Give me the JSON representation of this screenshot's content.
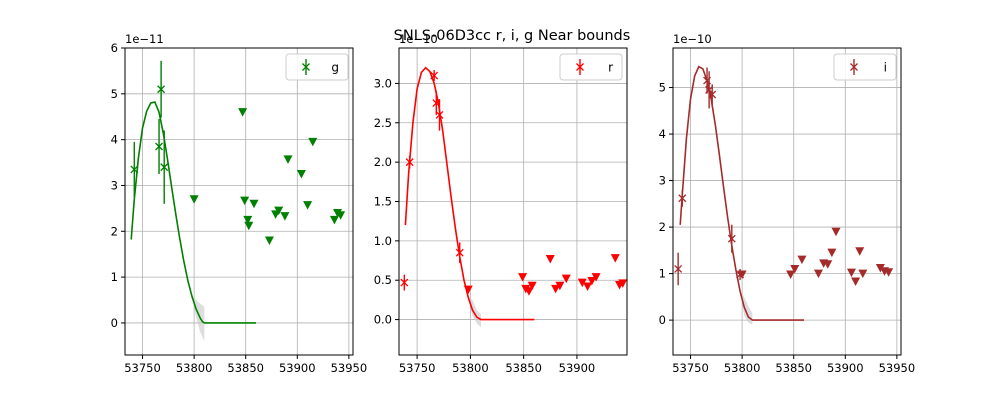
{
  "figure_title": "SNLS-06D3cc  r, i, g Near bounds",
  "chart_data": [
    {
      "type": "scatter",
      "band": "g",
      "legend_label": "g",
      "legend_location": "upper right",
      "color": "#008000",
      "offset_label": "1e−11",
      "xlim": [
        53733,
        53954
      ],
      "ylim": [
        -0.7,
        6.0
      ],
      "xticks": [
        53750,
        53800,
        53850,
        53900,
        53950
      ],
      "xtick_labels": [
        "53750",
        "53800",
        "53850",
        "53900",
        "53950"
      ],
      "yticks": [
        0,
        1,
        2,
        3,
        4,
        5,
        6
      ],
      "ytick_labels": [
        "0",
        "1",
        "2",
        "3",
        "4",
        "5",
        "6"
      ],
      "grid": true,
      "detections": [
        {
          "x": 53742,
          "y": 3.35,
          "err": 0.6
        },
        {
          "x": 53766,
          "y": 3.85,
          "err": 0.6
        },
        {
          "x": 53768,
          "y": 5.1,
          "err": 0.62
        },
        {
          "x": 53771,
          "y": 3.4,
          "err": 0.8
        }
      ],
      "upper_limits": [
        {
          "x": 53800,
          "y": 2.7
        },
        {
          "x": 53847,
          "y": 4.6
        },
        {
          "x": 53849,
          "y": 2.67
        },
        {
          "x": 53852,
          "y": 2.25
        },
        {
          "x": 53853,
          "y": 2.12
        },
        {
          "x": 53858,
          "y": 2.6
        },
        {
          "x": 53873,
          "y": 1.8
        },
        {
          "x": 53879,
          "y": 2.37
        },
        {
          "x": 53882,
          "y": 2.45
        },
        {
          "x": 53888,
          "y": 2.33
        },
        {
          "x": 53891,
          "y": 3.57
        },
        {
          "x": 53904,
          "y": 3.25
        },
        {
          "x": 53910,
          "y": 2.57
        },
        {
          "x": 53915,
          "y": 3.95
        },
        {
          "x": 53936,
          "y": 2.25
        },
        {
          "x": 53939,
          "y": 2.4
        },
        {
          "x": 53942,
          "y": 2.35
        }
      ],
      "model": {
        "x": [
          53739,
          53742,
          53746,
          53750,
          53754,
          53758,
          53762,
          53766,
          53770,
          53774,
          53778,
          53782,
          53786,
          53790,
          53794,
          53798,
          53802,
          53806,
          53808,
          53810,
          53860
        ],
        "y": [
          1.82,
          2.7,
          3.6,
          4.25,
          4.62,
          4.8,
          4.82,
          4.6,
          4.15,
          3.6,
          3.0,
          2.4,
          1.85,
          1.35,
          0.92,
          0.57,
          0.3,
          0.1,
          0.03,
          0.0,
          0.0
        ],
        "band_x": [
          53790,
          53794,
          53798,
          53802,
          53806,
          53810
        ],
        "band_lo": [
          1.35,
          0.92,
          0.57,
          0.1,
          -0.2,
          -0.4
        ],
        "band_hi": [
          1.35,
          0.92,
          0.57,
          0.5,
          0.42,
          0.35
        ]
      }
    },
    {
      "type": "scatter",
      "band": "r",
      "legend_label": "r",
      "legend_location": "upper right",
      "color": "#ff0000",
      "offset_label": "1e−10",
      "xlim": [
        53733,
        53947
      ],
      "ylim": [
        -0.45,
        3.45
      ],
      "xticks": [
        53750,
        53800,
        53850,
        53900
      ],
      "xtick_labels": [
        "53750",
        "53800",
        "53850",
        "53900"
      ],
      "yticks": [
        0.0,
        0.5,
        1.0,
        1.5,
        2.0,
        2.5,
        3.0
      ],
      "ytick_labels": [
        "0.0",
        "0.5",
        "1.0",
        "1.5",
        "2.0",
        "2.5",
        "3.0"
      ],
      "grid": true,
      "detections": [
        {
          "x": 53738,
          "y": 0.47,
          "err": 0.1
        },
        {
          "x": 53743,
          "y": 2.0,
          "err": 0.08
        },
        {
          "x": 53766,
          "y": 3.1,
          "err": 0.07
        },
        {
          "x": 53768,
          "y": 2.75,
          "err": 0.15
        },
        {
          "x": 53771,
          "y": 2.6,
          "err": 0.2
        },
        {
          "x": 53790,
          "y": 0.85,
          "err": 0.13
        }
      ],
      "upper_limits": [
        {
          "x": 53798,
          "y": 0.38
        },
        {
          "x": 53849,
          "y": 0.54
        },
        {
          "x": 53852,
          "y": 0.39
        },
        {
          "x": 53855,
          "y": 0.36
        },
        {
          "x": 53858,
          "y": 0.43
        },
        {
          "x": 53875,
          "y": 0.77
        },
        {
          "x": 53880,
          "y": 0.39
        },
        {
          "x": 53884,
          "y": 0.43
        },
        {
          "x": 53890,
          "y": 0.52
        },
        {
          "x": 53905,
          "y": 0.47
        },
        {
          "x": 53910,
          "y": 0.42
        },
        {
          "x": 53914,
          "y": 0.49
        },
        {
          "x": 53918,
          "y": 0.54
        },
        {
          "x": 53936,
          "y": 0.78
        },
        {
          "x": 53940,
          "y": 0.44
        },
        {
          "x": 53943,
          "y": 0.46
        }
      ],
      "model": {
        "x": [
          53739,
          53742,
          53746,
          53750,
          53754,
          53758,
          53762,
          53766,
          53770,
          53774,
          53778,
          53782,
          53786,
          53790,
          53794,
          53798,
          53802,
          53806,
          53810,
          53860
        ],
        "y": [
          1.2,
          1.85,
          2.5,
          2.93,
          3.14,
          3.2,
          3.15,
          3.0,
          2.75,
          2.4,
          1.98,
          1.55,
          1.15,
          0.8,
          0.5,
          0.28,
          0.12,
          0.03,
          0.0,
          0.0
        ],
        "band_x": [
          53790,
          53794,
          53798,
          53802,
          53806,
          53810
        ],
        "band_lo": [
          0.8,
          0.5,
          0.28,
          0.05,
          -0.05,
          -0.1
        ],
        "band_hi": [
          0.8,
          0.5,
          0.28,
          0.25,
          0.12,
          0.07
        ]
      }
    },
    {
      "type": "scatter",
      "band": "i",
      "legend_label": "i",
      "legend_location": "upper right",
      "color": "#a52a2a",
      "offset_label": "1e−10",
      "xlim": [
        53733,
        53954
      ],
      "ylim": [
        -0.75,
        5.85
      ],
      "xticks": [
        53750,
        53800,
        53850,
        53900,
        53950
      ],
      "xtick_labels": [
        "53750",
        "53800",
        "53850",
        "53900",
        "53950"
      ],
      "yticks": [
        0,
        1,
        2,
        3,
        4,
        5
      ],
      "ytick_labels": [
        "0",
        "1",
        "2",
        "3",
        "4",
        "5"
      ],
      "grid": true,
      "detections": [
        {
          "x": 53738,
          "y": 1.1,
          "err": 0.35
        },
        {
          "x": 53742,
          "y": 2.62,
          "err": 0.18
        },
        {
          "x": 53766,
          "y": 5.15,
          "err": 0.28
        },
        {
          "x": 53768,
          "y": 4.95,
          "err": 0.4
        },
        {
          "x": 53771,
          "y": 4.85,
          "err": 0.22
        },
        {
          "x": 53790,
          "y": 1.75,
          "err": 0.3
        },
        {
          "x": 53798,
          "y": 0.98,
          "err": 0.12
        }
      ],
      "upper_limits": [
        {
          "x": 53800,
          "y": 0.98
        },
        {
          "x": 53847,
          "y": 0.98
        },
        {
          "x": 53851,
          "y": 1.1
        },
        {
          "x": 53858,
          "y": 1.3
        },
        {
          "x": 53874,
          "y": 1.0
        },
        {
          "x": 53879,
          "y": 1.22
        },
        {
          "x": 53883,
          "y": 1.2
        },
        {
          "x": 53887,
          "y": 1.45
        },
        {
          "x": 53891,
          "y": 1.9
        },
        {
          "x": 53906,
          "y": 1.02
        },
        {
          "x": 53910,
          "y": 0.83
        },
        {
          "x": 53914,
          "y": 1.48
        },
        {
          "x": 53917,
          "y": 1.0
        },
        {
          "x": 53934,
          "y": 1.12
        },
        {
          "x": 53938,
          "y": 1.05
        },
        {
          "x": 53942,
          "y": 1.03
        }
      ],
      "model": {
        "x": [
          53740,
          53742,
          53746,
          53750,
          53754,
          53758,
          53762,
          53766,
          53770,
          53774,
          53778,
          53782,
          53786,
          53790,
          53794,
          53798,
          53802,
          53806,
          53810,
          53860
        ],
        "y": [
          2.05,
          2.7,
          3.9,
          4.75,
          5.25,
          5.45,
          5.4,
          5.15,
          4.75,
          4.2,
          3.55,
          2.85,
          2.2,
          1.6,
          1.08,
          0.62,
          0.28,
          0.07,
          0.0,
          0.0
        ],
        "band_x": [
          53790,
          53794,
          53798,
          53802,
          53806,
          53810
        ],
        "band_lo": [
          1.6,
          1.08,
          0.62,
          0.1,
          -0.05,
          -0.1
        ],
        "band_hi": [
          1.6,
          1.08,
          0.62,
          0.5,
          0.3,
          0.15
        ]
      }
    }
  ]
}
